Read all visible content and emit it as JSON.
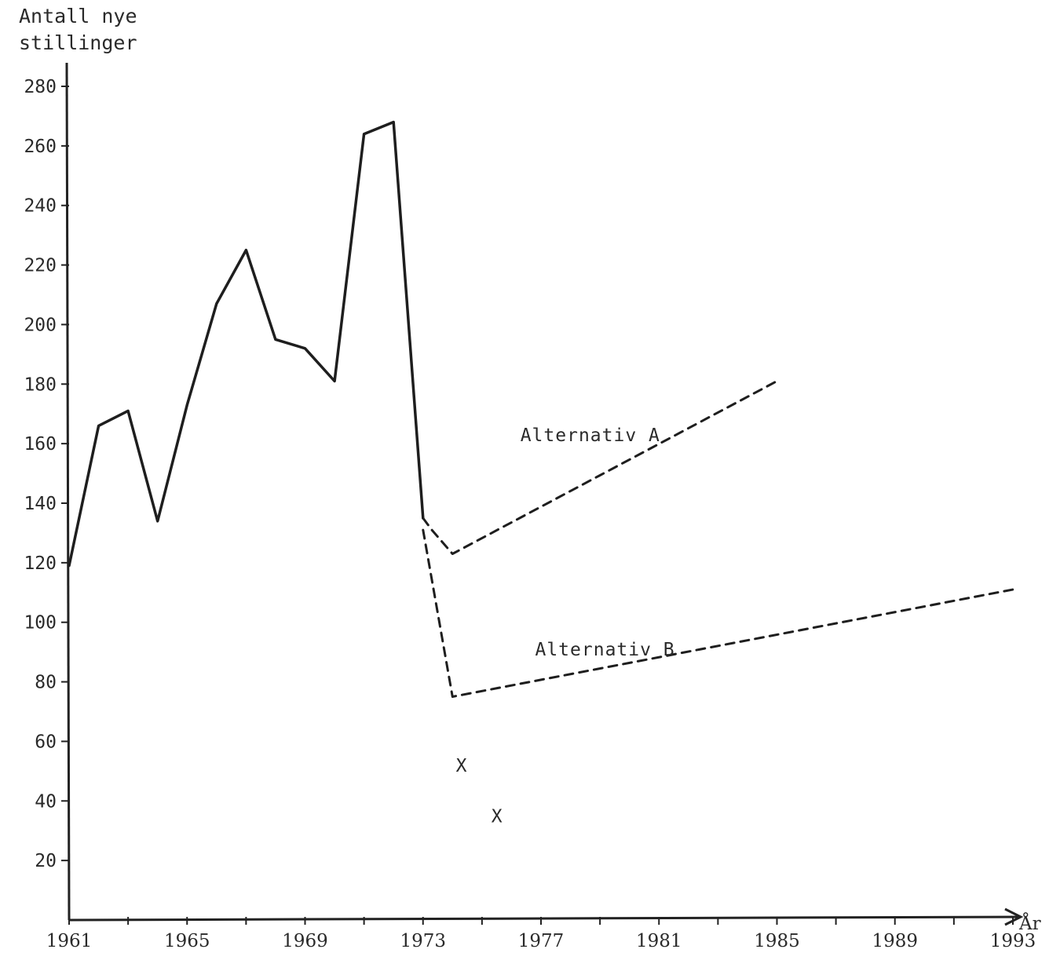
{
  "chart_data": {
    "type": "line",
    "ylabel_line1": "Antall nye",
    "ylabel_line2": "stillinger",
    "xlabel": "År",
    "xlim": [
      1961,
      1993
    ],
    "ylim": [
      0,
      280
    ],
    "x_ticks": [
      1961,
      1965,
      1969,
      1973,
      1977,
      1981,
      1985,
      1989,
      1993
    ],
    "y_ticks": [
      20,
      40,
      60,
      80,
      100,
      120,
      140,
      160,
      180,
      200,
      220,
      240,
      260,
      280
    ],
    "grid": false,
    "series": [
      {
        "style": "solid",
        "x": [
          1961,
          1962,
          1963,
          1964,
          1965,
          1966,
          1967,
          1968,
          1969,
          1970,
          1971,
          1972,
          1973
        ],
        "y": [
          119,
          166,
          171,
          134,
          173,
          207,
          225,
          195,
          192,
          181,
          264,
          268,
          135
        ]
      },
      {
        "name": "Alternativ A",
        "style": "dashed",
        "x": [
          1973,
          1973.3,
          1974,
          1985
        ],
        "y": [
          135,
          131,
          123,
          181
        ]
      },
      {
        "name": "Alternativ B",
        "style": "dashed",
        "x": [
          1973,
          1974,
          1993
        ],
        "y": [
          131,
          75,
          111
        ]
      }
    ],
    "markers": [
      {
        "label": "X",
        "x": 1974.3,
        "y": 52
      },
      {
        "label": "X",
        "x": 1975.5,
        "y": 35
      }
    ],
    "annotations": [
      {
        "text": "Alternativ A",
        "x": 1976.3,
        "y": 163
      },
      {
        "text": "Alternativ B",
        "x": 1976.8,
        "y": 91
      }
    ]
  }
}
